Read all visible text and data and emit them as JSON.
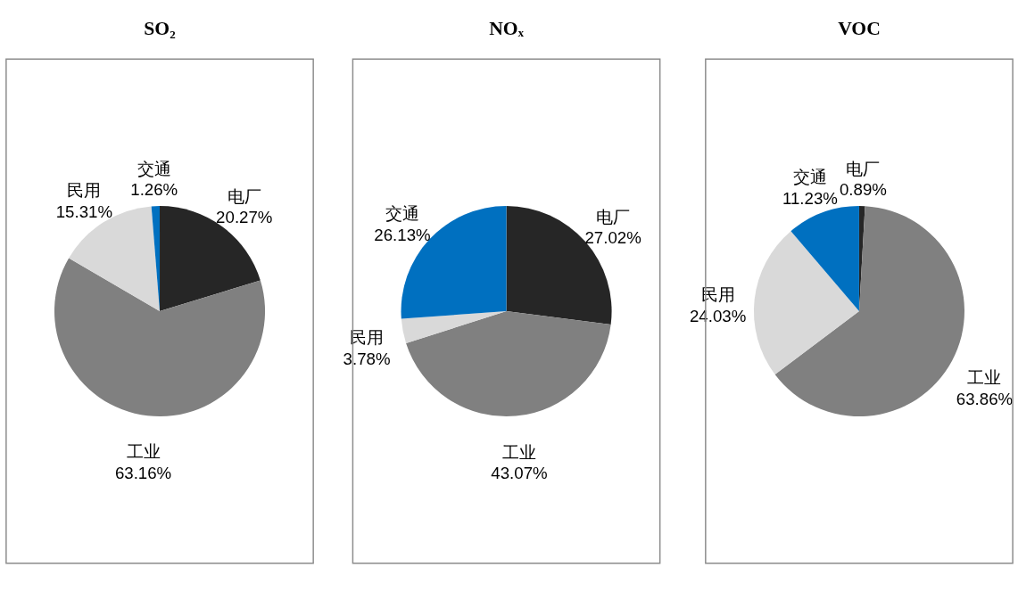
{
  "chart_data": [
    {
      "type": "pie",
      "title": "SO₂",
      "categories": [
        "电厂",
        "工业",
        "民用",
        "交通"
      ],
      "values": [
        20.27,
        63.16,
        15.31,
        1.26
      ],
      "value_labels": [
        "20.27%",
        "63.16%",
        "15.31%",
        "1.26%"
      ],
      "colors": [
        "#262626",
        "#808080",
        "#d9d9d9",
        "#0070c0"
      ],
      "legend": false
    },
    {
      "type": "pie",
      "title": "NOₓ",
      "categories": [
        "电厂",
        "工业",
        "民用",
        "交通"
      ],
      "values": [
        27.02,
        43.07,
        3.78,
        26.13
      ],
      "value_labels": [
        "27.02%",
        "43.07%",
        "3.78%",
        "26.13%"
      ],
      "colors": [
        "#262626",
        "#808080",
        "#d9d9d9",
        "#0070c0"
      ],
      "legend": false
    },
    {
      "type": "pie",
      "title": "VOC",
      "categories": [
        "电厂",
        "工业",
        "民用",
        "交通"
      ],
      "values": [
        0.89,
        63.86,
        24.03,
        11.23
      ],
      "value_labels": [
        "0.89%",
        "63.86%",
        "24.03%",
        "11.23%"
      ],
      "colors": [
        "#262626",
        "#808080",
        "#d9d9d9",
        "#0070c0"
      ],
      "legend": false
    }
  ]
}
